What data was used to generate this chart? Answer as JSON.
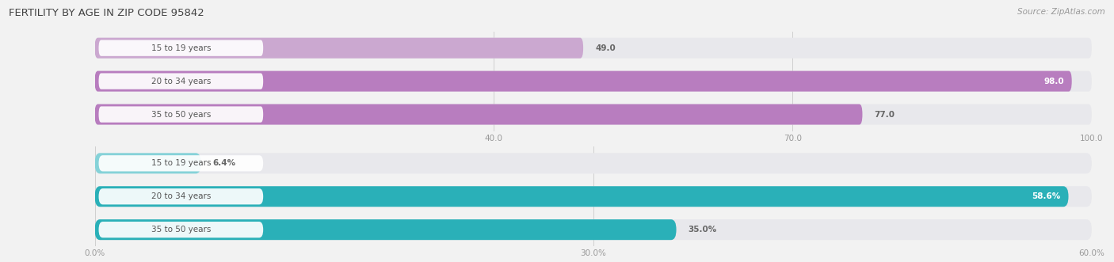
{
  "title": "FERTILITY BY AGE IN ZIP CODE 95842",
  "source": "Source: ZipAtlas.com",
  "top_bars": {
    "categories": [
      "15 to 19 years",
      "20 to 34 years",
      "35 to 50 years"
    ],
    "values": [
      49.0,
      98.0,
      77.0
    ],
    "bar_colors": [
      "#cba8d0",
      "#b87dbf",
      "#b87dbf"
    ],
    "xlim_max": 100,
    "xticks": [
      40.0,
      70.0,
      100.0
    ],
    "value_labels": [
      "49.0",
      "98.0",
      "77.0"
    ]
  },
  "bottom_bars": {
    "categories": [
      "15 to 19 years",
      "20 to 34 years",
      "35 to 50 years"
    ],
    "values": [
      6.4,
      58.6,
      35.0
    ],
    "bar_colors": [
      "#85d2d8",
      "#2ab0b8",
      "#2ab0b8"
    ],
    "xlim_max": 60,
    "xticks": [
      0.0,
      30.0,
      60.0
    ],
    "xticklabels": [
      "0.0%",
      "30.0%",
      "60.0%"
    ],
    "value_labels": [
      "6.4%",
      "58.6%",
      "35.0%"
    ]
  },
  "bg_color": "#f2f2f2",
  "bar_track_color": "#e8e8ec",
  "label_box_color": "#ffffff",
  "label_text_color": "#555555",
  "value_inside_color": "#ffffff",
  "value_outside_color": "#666666",
  "label_fontsize": 7.5,
  "value_fontsize": 7.5,
  "title_fontsize": 9.5,
  "source_fontsize": 7.5
}
